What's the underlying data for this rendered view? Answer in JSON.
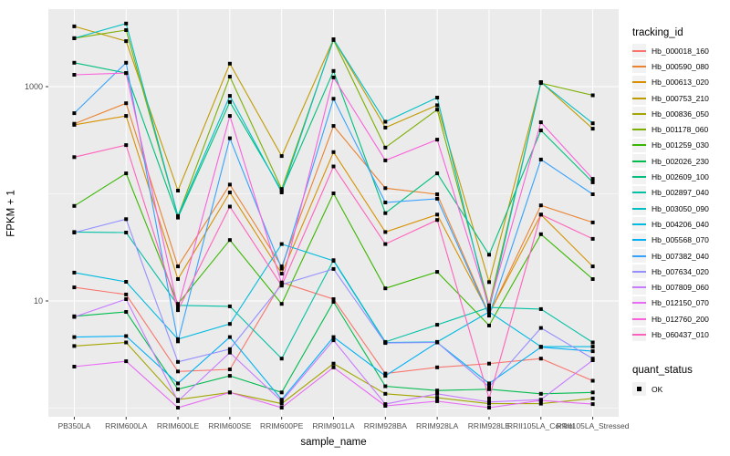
{
  "chart_data": {
    "type": "line",
    "title": "",
    "xlabel": "sample_name",
    "ylabel": "FPKM + 1",
    "y_scale": "log10",
    "y_tick_values": [
      10,
      1000
    ],
    "y_minor_gridlines": [
      1,
      100
    ],
    "ylim": [
      0.85,
      5500
    ],
    "grid": true,
    "legend_position": "right",
    "point_marker": {
      "shape": "square",
      "color": "#000000",
      "size": 4
    },
    "categories": [
      "PB350LA",
      "RRIM600LA",
      "RRIM600LE",
      "RRIM600SE",
      "RRIM600PE",
      "RRIM901LA",
      "RRIM928BA",
      "RRIM928LA",
      "RRIM928LE",
      "RRII105LA_Control",
      "RRII105LA_Stressed"
    ],
    "series": [
      {
        "name": "Hb_000018_160",
        "color": "#F8766D",
        "values": [
          13.4,
          11.5,
          2.2,
          2.3,
          14.9,
          10.4,
          2.1,
          2.4,
          2.6,
          2.9,
          1.8
        ]
      },
      {
        "name": "Hb_000590_080",
        "color": "#EA8331",
        "values": [
          450,
          700,
          21,
          122,
          21,
          430,
          113,
          99,
          7.5,
          78,
          54
        ]
      },
      {
        "name": "Hb_000613_020",
        "color": "#D89000",
        "values": [
          440,
          533,
          16,
          103,
          18,
          245,
          44,
          64,
          7.6,
          64,
          21
        ]
      },
      {
        "name": "Hb_000753_210",
        "color": "#C09B00",
        "values": [
          3650,
          2660,
          107,
          1640,
          225,
          2770,
          415,
          670,
          15,
          1100,
          405
        ]
      },
      {
        "name": "Hb_000836_050",
        "color": "#A3A500",
        "values": [
          3.8,
          4.1,
          1.2,
          1.4,
          1.1,
          2.6,
          1.36,
          1.25,
          1.1,
          1.1,
          1.23
        ]
      },
      {
        "name": "Hb_001178_060",
        "color": "#7CAE00",
        "values": [
          2830,
          3370,
          62,
          1240,
          111,
          2720,
          270,
          610,
          9.1,
          1080,
          830
        ]
      },
      {
        "name": "Hb_001259_030",
        "color": "#39B600",
        "values": [
          77,
          155,
          9.4,
          37,
          9.4,
          101,
          13.1,
          18.7,
          5.9,
          42,
          16
        ]
      },
      {
        "name": "Hb_002026_230",
        "color": "#00BB4E",
        "values": [
          7.2,
          7.9,
          1.5,
          2.0,
          1.4,
          9.8,
          1.6,
          1.46,
          1.5,
          1.36,
          1.4
        ]
      },
      {
        "name": "Hb_002609_100",
        "color": "#00BF7D",
        "values": [
          1670,
          1340,
          60,
          720,
          107,
          1400,
          66,
          155,
          27,
          390,
          128
        ]
      },
      {
        "name": "Hb_002897_040",
        "color": "#00C1A3",
        "values": [
          44,
          43.5,
          9.1,
          8.9,
          2.9,
          24,
          4.15,
          6.0,
          8.7,
          8.4,
          4.1
        ]
      },
      {
        "name": "Hb_003050_090",
        "color": "#00BFC4",
        "values": [
          2830,
          3880,
          62,
          820,
          103,
          2770,
          470,
          790,
          8.2,
          1100,
          455
        ]
      },
      {
        "name": "Hb_004206_040",
        "color": "#00BAE0",
        "values": [
          18.4,
          15.1,
          4.4,
          6.1,
          34,
          23.7,
          4.1,
          4.15,
          7.9,
          3.75,
          3.75
        ]
      },
      {
        "name": "Hb_005568_070",
        "color": "#00B0F6",
        "values": [
          4.6,
          4.7,
          1.7,
          4.6,
          1.2,
          4.6,
          2.0,
          4.1,
          1.7,
          3.7,
          3.4
        ]
      },
      {
        "name": "Hb_007382_040",
        "color": "#35A2FF",
        "values": [
          565,
          1670,
          4.2,
          330,
          20,
          770,
          83,
          90,
          7.3,
          209,
          99
        ]
      },
      {
        "name": "Hb_007634_020",
        "color": "#9590FF",
        "values": [
          43.5,
          58,
          2.7,
          3.55,
          14.2,
          19.9,
          4.05,
          4.1,
          1.58,
          5.6,
          2.9
        ]
      },
      {
        "name": "Hb_007809_060",
        "color": "#C77CFF",
        "values": [
          7.1,
          10.4,
          1.16,
          3.3,
          1.16,
          4.3,
          1.09,
          1.36,
          1.14,
          1.2,
          2.8
        ]
      },
      {
        "name": "Hb_012150_070",
        "color": "#E76BF3",
        "values": [
          2.44,
          2.74,
          1.01,
          1.4,
          1.01,
          2.4,
          1.05,
          1.16,
          1.01,
          1.18,
          1.09
        ]
      },
      {
        "name": "Hb_012760_200",
        "color": "#FA62DB",
        "values": [
          1290,
          1340,
          8.6,
          533,
          14.5,
          1220,
          205,
          320,
          8.9,
          465,
          138
        ]
      },
      {
        "name": "Hb_060437_010",
        "color": "#FF62BC",
        "values": [
          220,
          285,
          8.2,
          76,
          13.9,
          180,
          34,
          57,
          1.23,
          64,
          38
        ]
      }
    ]
  },
  "legend": {
    "color_title": "tracking_id",
    "shape_title": "quant_status",
    "shape_entries": [
      {
        "label": "OK",
        "marker": "black-square"
      }
    ]
  },
  "style": {
    "panel_bg": "#EBEBEB",
    "grid_color": "#FFFFFF",
    "tick_color": "#333333",
    "tick_label_color": "#4D4D4D",
    "axis_title_color": "#000000",
    "legend_key_bg": "#F2F2F2"
  }
}
